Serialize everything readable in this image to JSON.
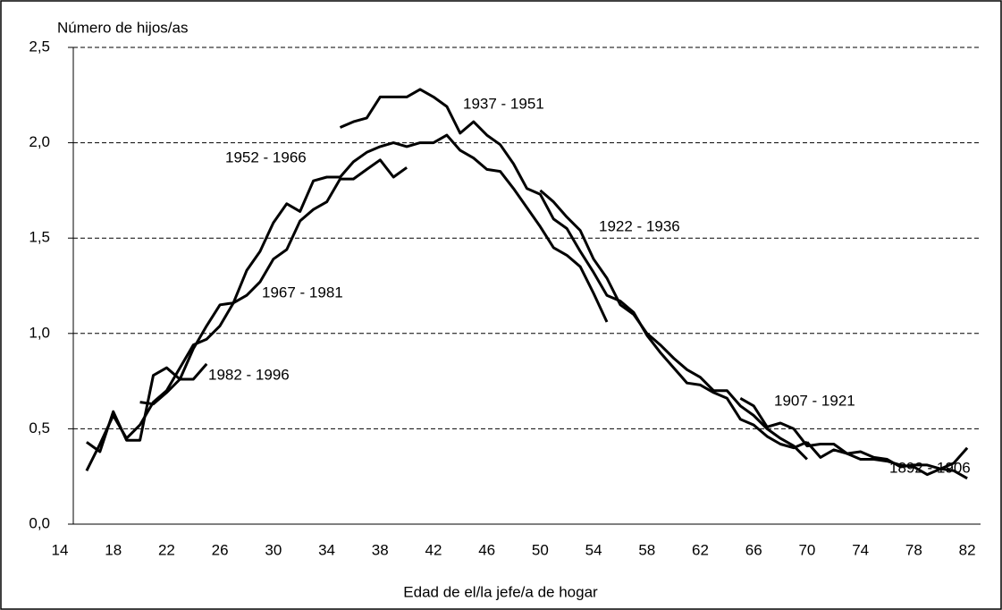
{
  "chart_data": {
    "type": "line",
    "y_label": "Número de hijos/as",
    "x_label": "Edad de el/la jefe/a de hogar",
    "xlim": [
      14,
      83
    ],
    "xticks": [
      14,
      18,
      22,
      26,
      30,
      34,
      38,
      42,
      46,
      50,
      54,
      58,
      62,
      66,
      70,
      74,
      78,
      82
    ],
    "ylim": [
      0,
      2.5
    ],
    "yticks": [
      {
        "value": 0,
        "label": "0,0"
      },
      {
        "value": 0.5,
        "label": "0,5"
      },
      {
        "value": 1,
        "label": "1,0"
      },
      {
        "value": 1.5,
        "label": "1,5"
      },
      {
        "value": 2,
        "label": "2,0"
      },
      {
        "value": 2.5,
        "label": "2,5"
      }
    ],
    "grid": true,
    "series": [
      {
        "name": "1982 - 1996",
        "color": "#000000",
        "x": [
          16,
          17,
          18,
          19,
          20,
          21,
          22,
          23,
          24,
          25
        ],
        "values": [
          0.43,
          0.38,
          0.59,
          0.44,
          0.44,
          0.78,
          0.82,
          0.76,
          0.76,
          0.84
        ]
      },
      {
        "name": "1967 - 1981",
        "color": "#000000",
        "x": [
          16,
          17,
          18,
          19,
          20,
          21,
          22,
          23,
          24,
          25,
          26,
          27,
          28,
          29,
          30,
          31,
          32,
          33,
          34,
          35,
          36,
          37,
          38,
          39,
          40
        ],
        "values": [
          0.28,
          0.42,
          0.57,
          0.45,
          0.52,
          0.64,
          0.7,
          0.82,
          0.94,
          0.97,
          1.04,
          1.16,
          1.2,
          1.27,
          1.39,
          1.44,
          1.59,
          1.65,
          1.69,
          1.81,
          1.81,
          1.86,
          1.91,
          1.82,
          1.87
        ]
      },
      {
        "name": "1952 - 1966",
        "color": "#000000",
        "x": [
          20,
          21,
          22,
          23,
          24,
          25,
          26,
          27,
          28,
          29,
          30,
          31,
          32,
          33,
          34,
          35,
          36,
          37,
          38,
          39,
          40,
          41,
          42,
          43,
          44,
          45,
          46,
          47,
          48,
          49,
          50,
          51,
          52,
          53,
          54,
          55
        ],
        "values": [
          0.64,
          0.63,
          0.69,
          0.76,
          0.92,
          1.04,
          1.15,
          1.16,
          1.33,
          1.43,
          1.58,
          1.68,
          1.64,
          1.8,
          1.82,
          1.82,
          1.9,
          1.95,
          1.98,
          2.0,
          1.98,
          2.0,
          2.0,
          2.04,
          1.96,
          1.92,
          1.86,
          1.85,
          1.76,
          1.66,
          1.56,
          1.45,
          1.41,
          1.35,
          1.21,
          1.06
        ]
      },
      {
        "name": "1937 - 1951",
        "color": "#000000",
        "x": [
          35,
          36,
          37,
          38,
          39,
          40,
          41,
          42,
          43,
          44,
          45,
          46,
          47,
          48,
          49,
          50,
          51,
          52,
          53,
          54,
          55,
          56,
          57,
          58,
          59,
          60,
          61,
          62,
          63,
          64,
          65,
          66,
          67,
          68,
          69,
          70
        ],
        "values": [
          2.08,
          2.11,
          2.13,
          2.24,
          2.24,
          2.24,
          2.28,
          2.24,
          2.19,
          2.05,
          2.11,
          2.04,
          1.99,
          1.89,
          1.76,
          1.73,
          1.6,
          1.55,
          1.43,
          1.32,
          1.2,
          1.17,
          1.11,
          0.99,
          0.9,
          0.82,
          0.74,
          0.73,
          0.69,
          0.66,
          0.55,
          0.52,
          0.46,
          0.42,
          0.4,
          0.43
        ]
      },
      {
        "name": "1922 - 1936",
        "color": "#000000",
        "x": [
          50,
          51,
          52,
          53,
          54,
          55,
          56,
          57,
          58,
          59,
          60,
          61,
          62,
          63,
          64,
          65,
          66,
          67,
          68,
          69,
          70
        ],
        "values": [
          1.75,
          1.69,
          1.61,
          1.54,
          1.39,
          1.29,
          1.15,
          1.1,
          1.0,
          0.94,
          0.87,
          0.81,
          0.77,
          0.7,
          0.7,
          0.62,
          0.57,
          0.5,
          0.45,
          0.41,
          0.34
        ]
      },
      {
        "name": "1907 - 1921",
        "color": "#000000",
        "x": [
          65,
          66,
          67,
          68,
          69,
          70,
          71,
          72,
          73,
          74,
          75,
          76,
          77,
          78,
          79,
          80,
          81,
          82
        ],
        "values": [
          0.66,
          0.62,
          0.51,
          0.53,
          0.5,
          0.41,
          0.42,
          0.42,
          0.37,
          0.38,
          0.35,
          0.34,
          0.3,
          0.31,
          0.31,
          0.29,
          0.28,
          0.24
        ]
      },
      {
        "name": "1892 - 1906",
        "color": "#000000",
        "x": [
          70,
          71,
          72,
          73,
          74,
          75,
          76,
          77,
          78,
          79,
          80,
          81,
          82
        ],
        "values": [
          0.43,
          0.35,
          0.39,
          0.37,
          0.34,
          0.34,
          0.33,
          0.31,
          0.3,
          0.26,
          0.29,
          0.32,
          0.4
        ]
      }
    ]
  }
}
